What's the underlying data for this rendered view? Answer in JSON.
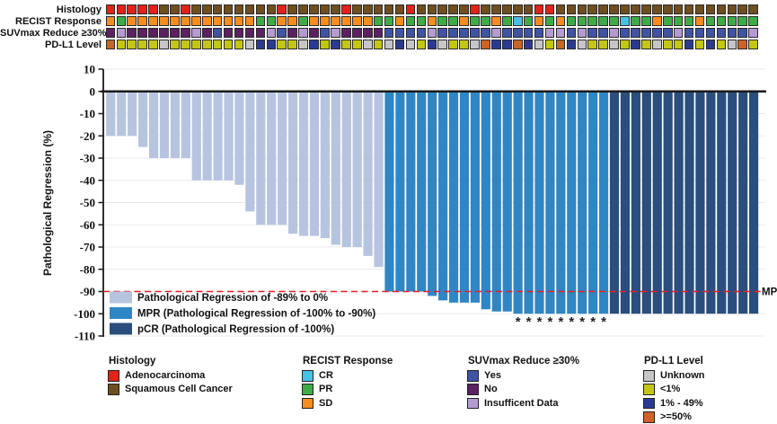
{
  "tracks": {
    "rows": [
      {
        "key": "histology",
        "label": "Histology"
      },
      {
        "key": "recist",
        "label": "RECIST Response"
      },
      {
        "key": "suvmax",
        "label": "SUVmax Reduce ≥30%"
      },
      {
        "key": "pdl1",
        "label": "PD-L1 Level"
      }
    ],
    "values": {
      "histology": [
        "A",
        "A",
        "A",
        "A",
        "A",
        "S",
        "S",
        "A",
        "S",
        "S",
        "S",
        "S",
        "S",
        "S",
        "S",
        "S",
        "A",
        "S",
        "S",
        "S",
        "S",
        "S",
        "A",
        "S",
        "S",
        "S",
        "S",
        "S",
        "A",
        "S",
        "S",
        "S",
        "S",
        "S",
        "A",
        "S",
        "S",
        "S",
        "S",
        "S",
        "A",
        "A",
        "S",
        "S",
        "S",
        "S",
        "S",
        "S",
        "S",
        "S",
        "S",
        "S",
        "S",
        "S",
        "S",
        "S",
        "S",
        "S",
        "S",
        "S",
        "S"
      ],
      "recist": [
        "SD",
        "PR",
        "SD",
        "SD",
        "SD",
        "SD",
        "SD",
        "SD",
        "SD",
        "SD",
        "SD",
        "SD",
        "SD",
        "SD",
        "PR",
        "PR",
        "SD",
        "SD",
        "PR",
        "SD",
        "SD",
        "SD",
        "SD",
        "SD",
        "SD",
        "PR",
        "PR",
        "SD",
        "PR",
        "PR",
        "SD",
        "PR",
        "PR",
        "SD",
        "PR",
        "PR",
        "SD",
        "PR",
        "CR",
        "PR",
        "SD",
        "PR",
        "SD",
        "PR",
        "PR",
        "PR",
        "PR",
        "PR",
        "CR",
        "PR",
        "PR",
        "SD",
        "PR",
        "PR",
        "PR",
        "SD",
        "PR",
        "PR",
        "PR",
        "PR",
        "PR"
      ],
      "suvmax": [
        "No",
        "ID",
        "No",
        "No",
        "No",
        "No",
        "No",
        "No",
        "ID",
        "No",
        "Yes",
        "No",
        "No",
        "No",
        "No",
        "ID",
        "Yes",
        "No",
        "ID",
        "No",
        "Yes",
        "ID",
        "No",
        "No",
        "No",
        "No",
        "Yes",
        "Yes",
        "Yes",
        "Yes",
        "ID",
        "Yes",
        "Yes",
        "Yes",
        "Yes",
        "Yes",
        "ID",
        "Yes",
        "Yes",
        "Yes",
        "Yes",
        "ID",
        "ID",
        "Yes",
        "ID",
        "Yes",
        "Yes",
        "ID",
        "Yes",
        "Yes",
        "Yes",
        "Yes",
        "Yes",
        "ID",
        "Yes",
        "Yes",
        "Yes",
        "Yes",
        "Yes",
        "Yes",
        "ID"
      ],
      "pdl1": [
        "H",
        "L",
        "L",
        "L",
        "L",
        "U",
        "L",
        "L",
        "L",
        "L",
        "L",
        "L",
        "L",
        "U",
        "M",
        "M",
        "L",
        "L",
        "U",
        "M",
        "L",
        "M",
        "L",
        "L",
        "U",
        "L",
        "U",
        "M",
        "U",
        "L",
        "M",
        "U",
        "L",
        "L",
        "U",
        "H",
        "M",
        "M",
        "H",
        "M",
        "U",
        "L",
        "H",
        "M",
        "U",
        "L",
        "L",
        "U",
        "L",
        "M",
        "L",
        "U",
        "L",
        "L",
        "M",
        "L",
        "M",
        "L",
        "U",
        "H",
        "L"
      ]
    },
    "palette": {
      "histology": {
        "A": "#e32219",
        "S": "#6f4e20"
      },
      "recist": {
        "CR": "#45c1e8",
        "PR": "#3fab47",
        "SD": "#f78d1e"
      },
      "suvmax": {
        "Yes": "#4053a4",
        "No": "#5c2160",
        "ID": "#b49bd1"
      },
      "pdl1": {
        "U": "#c6c6c8",
        "L": "#c3c614",
        "M": "#2a3b8f",
        "H": "#cc6327"
      }
    }
  },
  "chart_data": {
    "type": "bar",
    "title": "",
    "ylabel": "Pathological Regression (%)",
    "ylim": [
      -110,
      10
    ],
    "yticks": [
      10,
      0,
      -10,
      -20,
      -30,
      -40,
      -50,
      -60,
      -70,
      -80,
      -90,
      -100,
      -110
    ],
    "n_patients": 61,
    "values": [
      -20,
      -20,
      -20,
      -25,
      -30,
      -30,
      -30,
      -30,
      -40,
      -40,
      -40,
      -40,
      -42,
      -54,
      -60,
      -60,
      -60,
      -64,
      -65,
      -65,
      -66,
      -69,
      -70,
      -70,
      -74,
      -79,
      -90,
      -90,
      -90,
      -90,
      -92,
      -94,
      -95,
      -95,
      -95,
      -98,
      -99,
      -99,
      -100,
      -100,
      -100,
      -100,
      -100,
      -100,
      -100,
      -100,
      -100,
      -100,
      -100,
      -100,
      -100,
      -100,
      -100,
      -100,
      -100,
      -100,
      -100,
      -100,
      -100,
      -100,
      -100
    ],
    "group_counts": {
      "reg": 26,
      "mpr": 21,
      "pcr": 14
    },
    "asterisk_bars": [
      39,
      40,
      41,
      42,
      43,
      44,
      45,
      46,
      47
    ],
    "asterisk_symbol": "*",
    "reference_line": {
      "y": -90,
      "label": "MPR",
      "color": "#ed1c24"
    },
    "legend": [
      {
        "key": "reg",
        "label": "Pathological Regression of -89% to 0%",
        "color": "#b6c4e0"
      },
      {
        "key": "mpr",
        "label": "MPR (Pathological Regression of -100% to -90%)",
        "color": "#2f86c5"
      },
      {
        "key": "pcr",
        "label": "pCR (Pathological Regression of -100%)",
        "color": "#2a4e7d"
      }
    ],
    "bar_colors": {
      "reg": "#b6c4e0",
      "mpr": "#2f86c5",
      "pcr": "#2a4e7d"
    }
  },
  "bottom_legends": [
    {
      "title": "Histology",
      "items": [
        {
          "label": "Adenocarcinoma",
          "color": "#e32219"
        },
        {
          "label": "Squamous Cell Cancer",
          "color": "#6f4e20"
        }
      ]
    },
    {
      "title": "RECIST Response",
      "items": [
        {
          "label": "CR",
          "color": "#45c1e8"
        },
        {
          "label": "PR",
          "color": "#3fab47"
        },
        {
          "label": "SD",
          "color": "#f78d1e"
        }
      ]
    },
    {
      "title": "SUVmax Reduce ≥30%",
      "items": [
        {
          "label": "Yes",
          "color": "#4053a4"
        },
        {
          "label": "No",
          "color": "#5c2160"
        },
        {
          "label": "Insufficent Data",
          "color": "#b49bd1"
        }
      ]
    },
    {
      "title": "PD-L1 Level",
      "items": [
        {
          "label": "Unknown",
          "color": "#c6c6c8"
        },
        {
          "label": "<1%",
          "color": "#c3c614"
        },
        {
          "label": "1% - 49%",
          "color": "#2a3b8f"
        },
        {
          "label": ">=50%",
          "color": "#cc6327"
        }
      ]
    }
  ]
}
